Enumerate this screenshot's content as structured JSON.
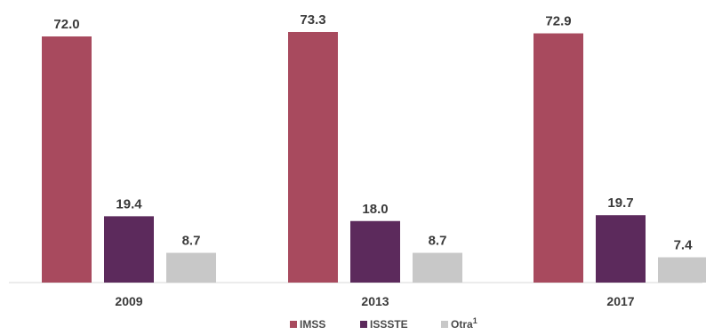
{
  "chart_data": {
    "type": "bar",
    "categories": [
      "2009",
      "2013",
      "2017"
    ],
    "series": [
      {
        "name": "IMSS",
        "color": "#a84a5e",
        "values": [
          72.0,
          73.3,
          72.9
        ],
        "labels": [
          "72.0",
          "73.3",
          "72.9"
        ]
      },
      {
        "name": "ISSSTE",
        "color": "#5c2a5c",
        "values": [
          19.4,
          18.0,
          19.7
        ],
        "labels": [
          "19.4",
          "18.0",
          "19.7"
        ]
      },
      {
        "name": "Otra",
        "name_sup": "1",
        "color": "#c8c8c8",
        "values": [
          8.7,
          8.7,
          7.4
        ],
        "labels": [
          "8.7",
          "8.7",
          "7.4"
        ]
      }
    ],
    "ylim": [
      0,
      73.3
    ],
    "grid": false,
    "legend_position": "bottom"
  }
}
